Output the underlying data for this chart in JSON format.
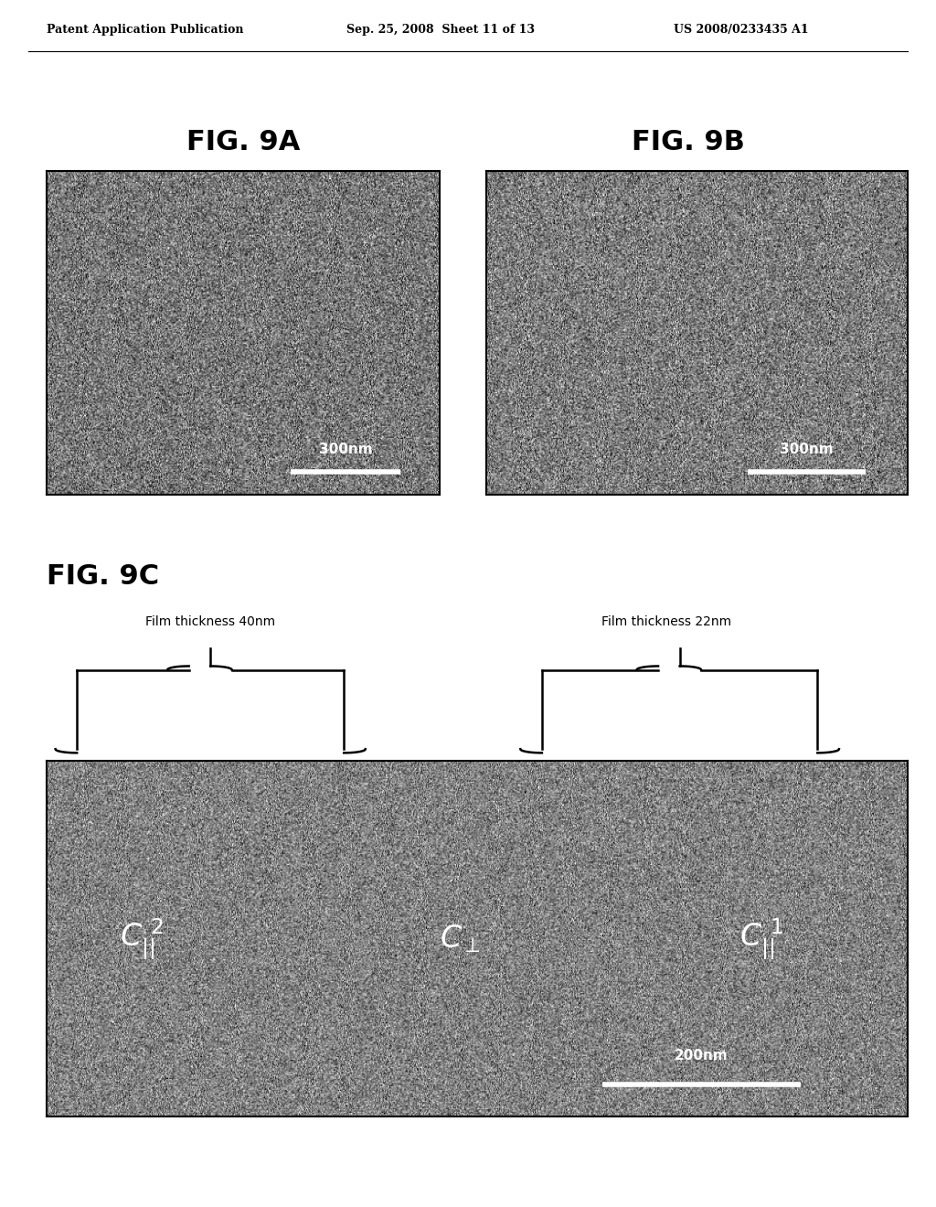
{
  "header_left": "Patent Application Publication",
  "header_mid": "Sep. 25, 2008  Sheet 11 of 13",
  "header_right": "US 2008/0233435 A1",
  "fig9a_label": "FIG. 9A",
  "fig9b_label": "FIG. 9B",
  "fig9c_label": "FIG. 9C",
  "scale_9a": "300nm",
  "scale_9b": "300nm",
  "scale_9c": "200nm",
  "film_thick_left": "Film thickness 40nm",
  "film_thick_right": "Film thickness 22nm",
  "bg_color": "#ffffff"
}
